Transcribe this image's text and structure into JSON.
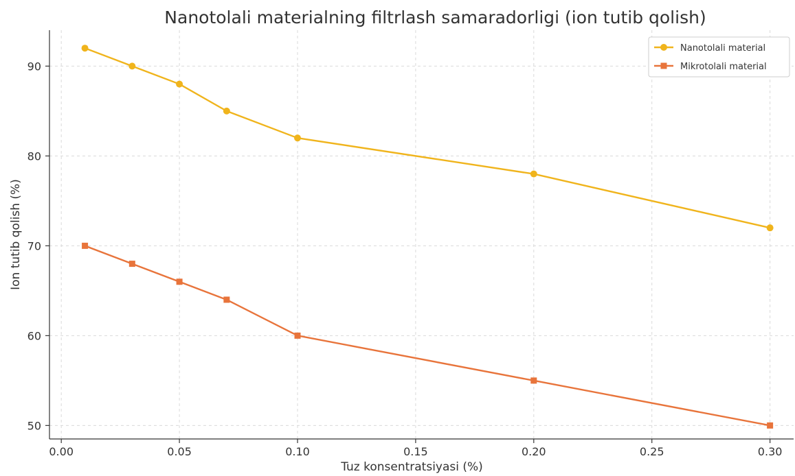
{
  "chart_data": {
    "type": "line",
    "title": "Nanotolali materialning filtrlash samaradorligi (ion tutib qolish)",
    "xlabel": "Tuz konsentratsiyasi (%)",
    "ylabel": "Ion tutib qolish (%)",
    "xlim": [
      -0.005,
      0.31
    ],
    "ylim": [
      48.5,
      94
    ],
    "xticks": [
      0.0,
      0.05,
      0.1,
      0.15,
      0.2,
      0.25,
      0.3
    ],
    "xtick_labels": [
      "0.00",
      "0.05",
      "0.10",
      "0.15",
      "0.20",
      "0.25",
      "0.30"
    ],
    "yticks": [
      50,
      60,
      70,
      80,
      90
    ],
    "ytick_labels": [
      "50",
      "60",
      "70",
      "80",
      "90"
    ],
    "grid": true,
    "legend_position": "top-right",
    "x": [
      0.01,
      0.03,
      0.05,
      0.07,
      0.1,
      0.2,
      0.3
    ],
    "series": [
      {
        "name": "Nanotolali material",
        "values": [
          92,
          90,
          88,
          85,
          82,
          78,
          72
        ],
        "color": "#f0b41c",
        "marker": "circle"
      },
      {
        "name": "Mikrotolali material",
        "values": [
          70,
          68,
          66,
          64,
          60,
          55,
          50
        ],
        "color": "#e8743b",
        "marker": "square"
      }
    ]
  }
}
